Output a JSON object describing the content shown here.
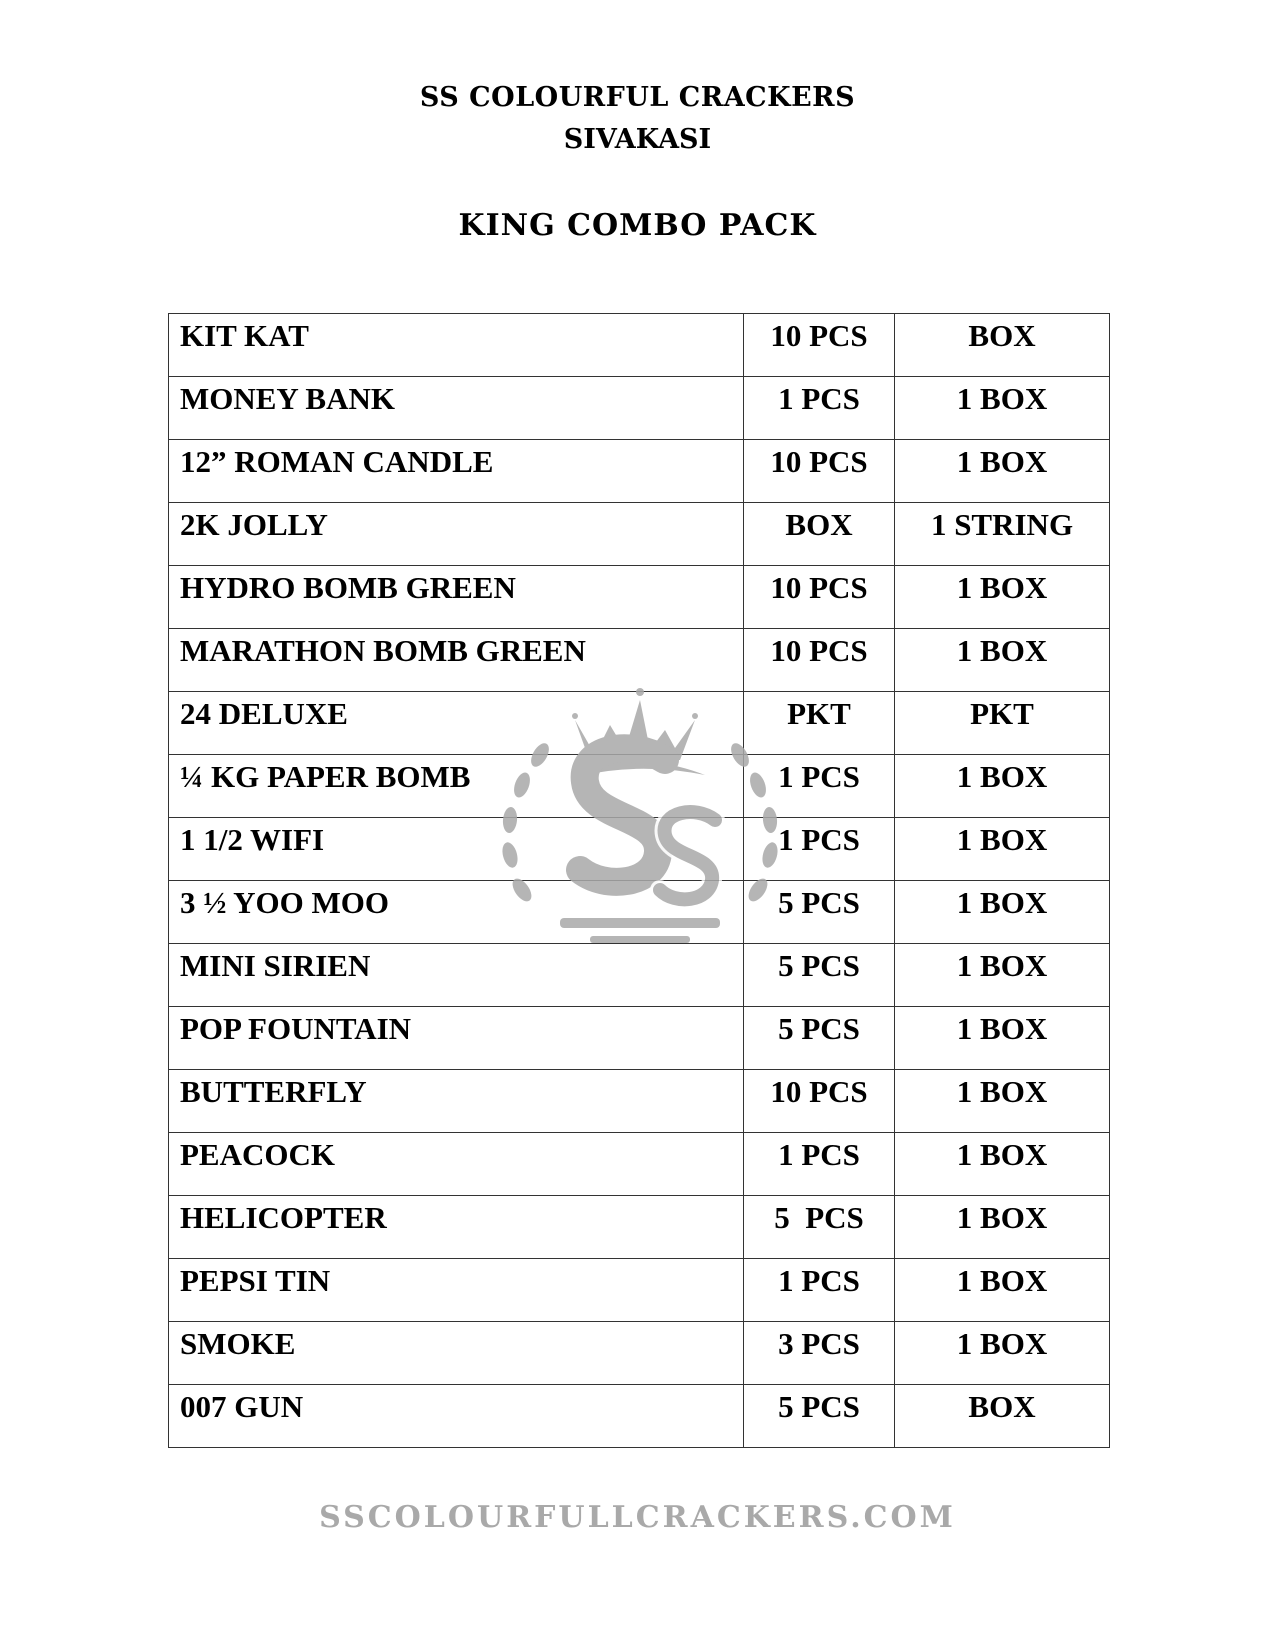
{
  "header": {
    "company": "SS COLOURFUL CRACKERS",
    "city": "SIVAKASI",
    "pack_title": "KING COMBO PACK"
  },
  "watermark": {
    "logo_text": "COLOURFUL CRACKERS",
    "logo_letter": "S",
    "url": "SSCOLOURFULLCRACKERS.COM",
    "color": "#a9a9a9"
  },
  "items": [
    {
      "name": "KIT KAT",
      "qty": "10 PCS",
      "unit": "BOX"
    },
    {
      "name": "MONEY BANK",
      "qty": "1 PCS",
      "unit": "1 BOX"
    },
    {
      "name": "12” ROMAN CANDLE",
      "qty": "10 PCS",
      "unit": "1 BOX"
    },
    {
      "name": "2K JOLLY",
      "qty": "BOX",
      "unit": "1 STRING"
    },
    {
      "name": "HYDRO BOMB GREEN",
      "qty": "10 PCS",
      "unit": "1 BOX"
    },
    {
      "name": "MARATHON BOMB GREEN",
      "qty": "10 PCS",
      "unit": "1 BOX"
    },
    {
      "name": "24 DELUXE",
      "qty": "PKT",
      "unit": "PKT"
    },
    {
      "name": "¼ KG PAPER BOMB",
      "qty": "1 PCS",
      "unit": "1 BOX"
    },
    {
      "name": "1 1/2 WIFI",
      "qty": "1 PCS",
      "unit": "1 BOX"
    },
    {
      "name": "3 ½ YOO MOO",
      "qty": "5 PCS",
      "unit": "1 BOX"
    },
    {
      "name": "MINI SIRIEN",
      "qty": "5 PCS",
      "unit": "1 BOX"
    },
    {
      "name": "POP FOUNTAIN",
      "qty": "5 PCS",
      "unit": "1 BOX"
    },
    {
      "name": "BUTTERFLY",
      "qty": "10 PCS",
      "unit": "1 BOX"
    },
    {
      "name": "PEACOCK",
      "qty": "1 PCS",
      "unit": "1 BOX"
    },
    {
      "name": "HELICOPTER",
      "qty": "5  PCS",
      "unit": "1 BOX"
    },
    {
      "name": "PEPSI TIN",
      "qty": "1 PCS",
      "unit": "1 BOX"
    },
    {
      "name": "SMOKE",
      "qty": "3 PCS",
      "unit": "1 BOX"
    },
    {
      "name": "007 GUN",
      "qty": "5 PCS",
      "unit": "BOX"
    }
  ]
}
